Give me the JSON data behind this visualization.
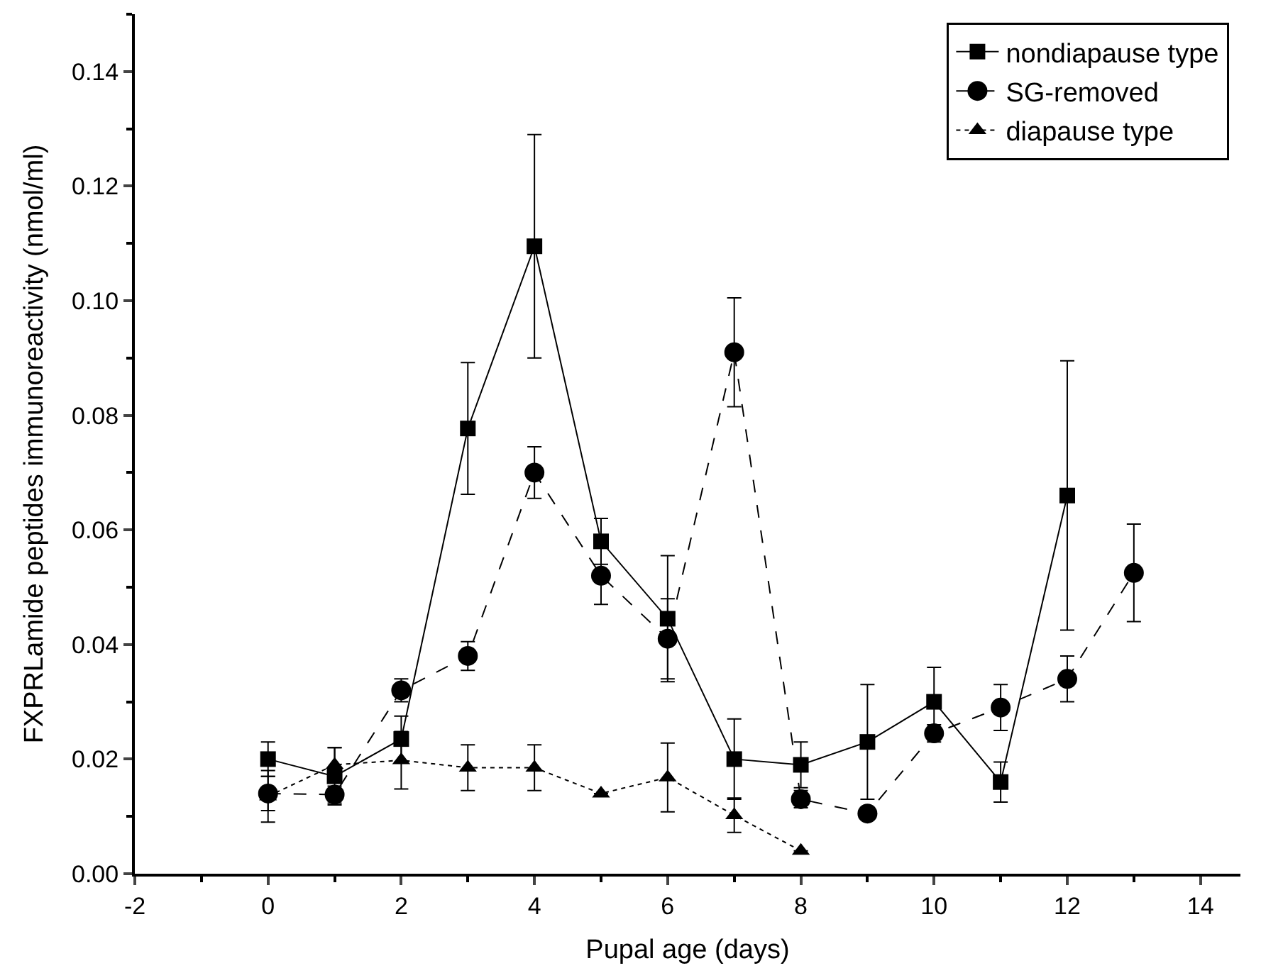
{
  "chart_data": {
    "type": "line",
    "xlabel": "Pupal age (days)",
    "ylabel": "FXPRLamide peptides immunoreactivity (nmol/ml)",
    "xlim": [
      -2,
      14.6
    ],
    "xticks": [
      -2,
      0,
      2,
      4,
      6,
      8,
      10,
      12,
      14
    ],
    "ylim": [
      0,
      0.15
    ],
    "yticks": [
      {
        "value": 0,
        "label": "0.00"
      },
      0.02,
      0.04,
      0.06,
      0.08,
      {
        "value": 0.1,
        "label": "0.10"
      },
      0.12,
      0.14
    ],
    "legend": "top right",
    "series": [
      {
        "name": "nondiapause type",
        "color": "#000000",
        "marker": "square",
        "line_style": "solid",
        "x": [
          0,
          1,
          2,
          3,
          4,
          5,
          6,
          7,
          8,
          9,
          10,
          11,
          12
        ],
        "values": [
          0.02,
          0.017,
          0.0235,
          0.0777,
          0.1095,
          0.058,
          0.0445,
          0.02,
          0.019,
          0.023,
          0.03,
          0.016,
          0.066
        ],
        "errors": [
          0.003,
          0.005,
          0.004,
          0.0115,
          0.0195,
          0.004,
          0.011,
          0.007,
          0.004,
          0.01,
          0.006,
          0.0035,
          0.0235
        ]
      },
      {
        "name": "SG-removed",
        "color": "#000000",
        "marker": "circle",
        "line_style": "dashed",
        "x": [
          0,
          1,
          2,
          3,
          4,
          5,
          6,
          7,
          8,
          9,
          10,
          11,
          12,
          13
        ],
        "values": [
          0.014,
          0.0138,
          0.032,
          0.038,
          0.07,
          0.052,
          0.041,
          0.091,
          0.013,
          0.0105,
          0.0245,
          0.029,
          0.034,
          0.0525
        ],
        "errors": [
          0.003,
          0.0015,
          0.002,
          0.0025,
          0.0045,
          0.005,
          0.007,
          0.0095,
          0.0015,
          0.001,
          0.0015,
          0.004,
          0.004,
          0.0085
        ]
      },
      {
        "name": "diapause type",
        "color": "#000000",
        "marker": "triangle",
        "line_style": "dotted",
        "x": [
          0,
          1,
          2,
          3,
          4,
          5,
          6,
          7,
          8
        ],
        "values": [
          0.0135,
          0.019,
          0.0198,
          0.0185,
          0.0185,
          0.014,
          0.0168,
          0.0102,
          0.004
        ],
        "errors": [
          0.0045,
          0.003,
          0.005,
          0.004,
          0.004,
          null,
          0.006,
          0.003,
          null
        ]
      }
    ]
  }
}
